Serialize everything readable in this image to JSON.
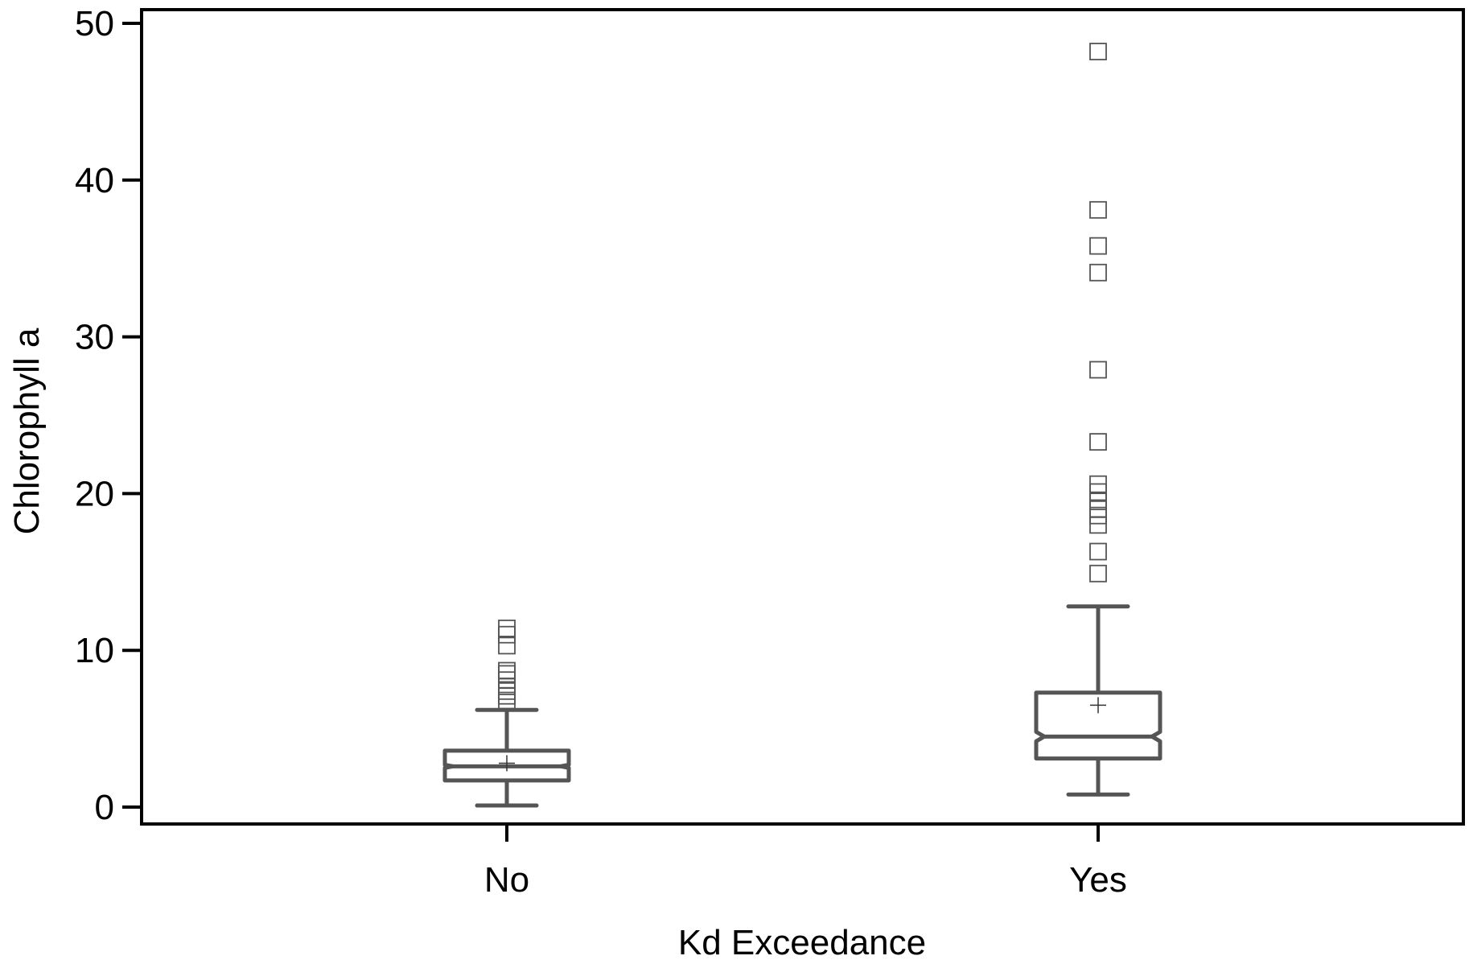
{
  "chart_data": {
    "type": "box",
    "title": "",
    "xlabel": "Kd Exceedance",
    "ylabel": "Chlorophyll a",
    "ylim": [
      -1,
      51
    ],
    "yticks": [
      0,
      10,
      20,
      30,
      40,
      50
    ],
    "notched": true,
    "grid": false,
    "legend": "none",
    "colors": {
      "box": "#555555",
      "outlier": "#555555",
      "frame": "#000000"
    },
    "categories": [
      "No",
      "Yes"
    ],
    "series": [
      {
        "category": "No",
        "whisker_low": 0.1,
        "q1": 1.7,
        "median": 2.6,
        "q3": 3.6,
        "whisker_high": 6.2,
        "mean": 2.8,
        "notch_low": 2.5,
        "notch_high": 2.7,
        "outliers": [
          6.8,
          7.1,
          7.4,
          7.7,
          8.1,
          8.5,
          8.7,
          10.3,
          11.0,
          11.4
        ]
      },
      {
        "category": "Yes",
        "whisker_low": 0.8,
        "q1": 3.1,
        "median": 4.5,
        "q3": 7.3,
        "whisker_high": 12.8,
        "mean": 6.5,
        "notch_low": 4.2,
        "notch_high": 4.8,
        "outliers": [
          14.9,
          16.3,
          18.0,
          18.6,
          19.0,
          19.5,
          20.1,
          20.6,
          23.3,
          27.9,
          34.1,
          35.8,
          38.1,
          48.2
        ]
      }
    ]
  }
}
